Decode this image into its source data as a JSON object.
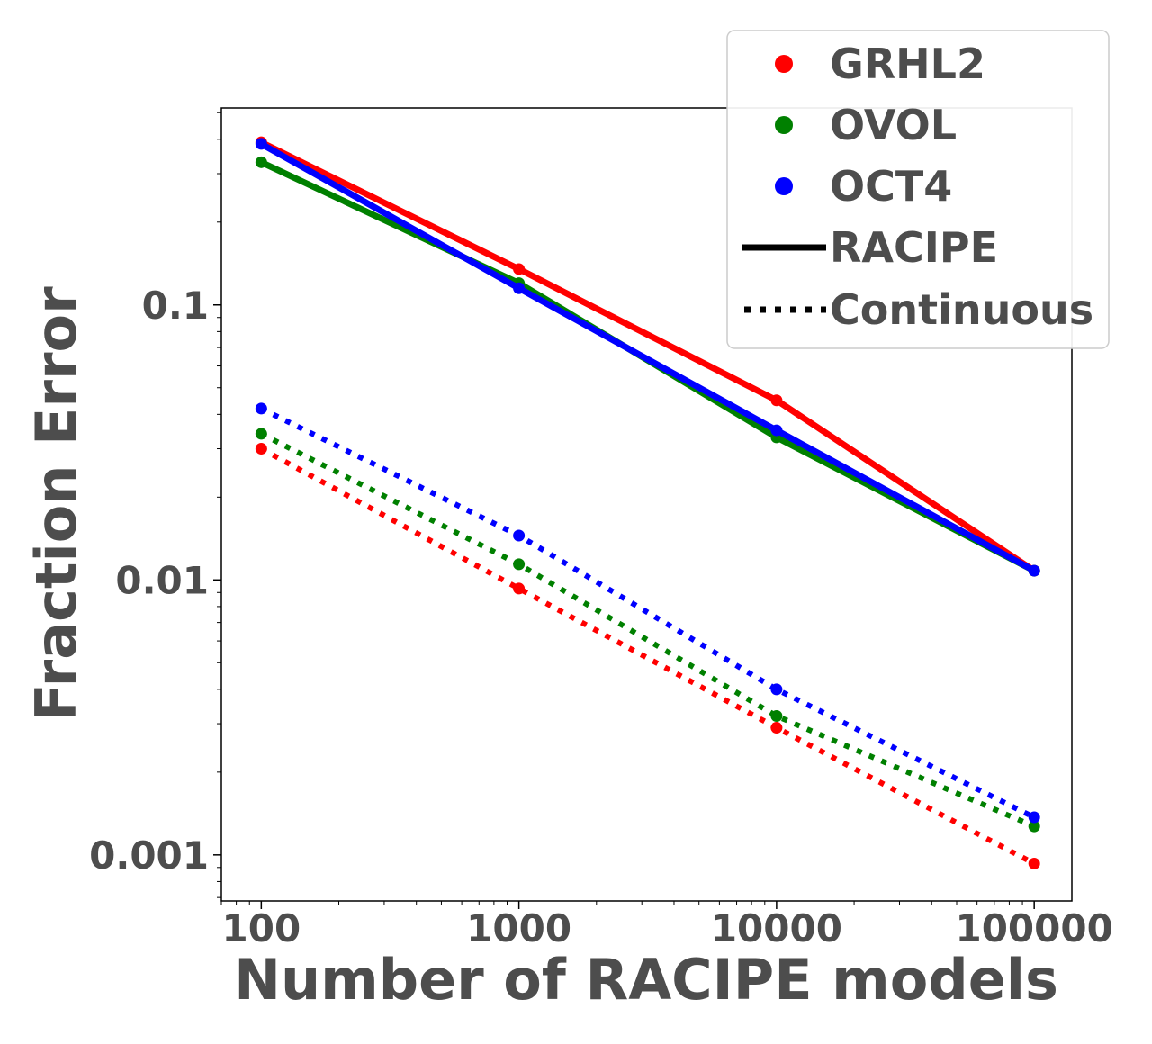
{
  "chart_data": {
    "type": "line",
    "xscale": "log",
    "yscale": "log",
    "xlabel": "Number of RACIPE models",
    "ylabel": "Fraction Error",
    "x": [
      100,
      1000,
      10000,
      100000
    ],
    "x_tick_labels": [
      "100",
      "1000",
      "10000",
      "100000"
    ],
    "y_tick_labels": [
      "0.1",
      "0.01",
      "0.001"
    ],
    "y_ticks": [
      0.1,
      0.01,
      0.001
    ],
    "xlim": [
      70,
      140000
    ],
    "ylim": [
      0.00068,
      0.52
    ],
    "grid": false,
    "legend_position": "top-right",
    "series": [
      {
        "name": "GRHL2",
        "method": "RACIPE",
        "color": "#ff0000",
        "values": [
          0.39,
          0.135,
          0.045,
          0.0108
        ]
      },
      {
        "name": "OVOL",
        "method": "RACIPE",
        "color": "#008000",
        "values": [
          0.33,
          0.12,
          0.033,
          0.0108
        ]
      },
      {
        "name": "OCT4",
        "method": "RACIPE",
        "color": "#0000ff",
        "values": [
          0.385,
          0.115,
          0.035,
          0.0108
        ]
      },
      {
        "name": "GRHL2",
        "method": "Continuous",
        "color": "#ff0000",
        "values": [
          0.03,
          0.0093,
          0.0029,
          0.00093
        ]
      },
      {
        "name": "OVOL",
        "method": "Continuous",
        "color": "#008000",
        "values": [
          0.034,
          0.0114,
          0.0032,
          0.00127
        ]
      },
      {
        "name": "OCT4",
        "method": "Continuous",
        "color": "#0000ff",
        "values": [
          0.042,
          0.0145,
          0.004,
          0.00137
        ]
      }
    ],
    "legend": {
      "entries": [
        {
          "label": "GRHL2",
          "kind": "marker",
          "color": "#ff0000"
        },
        {
          "label": "OVOL",
          "kind": "marker",
          "color": "#008000"
        },
        {
          "label": "OCT4",
          "kind": "marker",
          "color": "#0000ff"
        },
        {
          "label": "RACIPE",
          "kind": "solid",
          "color": "#000000"
        },
        {
          "label": "Continuous",
          "kind": "dotted",
          "color": "#000000"
        }
      ]
    }
  }
}
